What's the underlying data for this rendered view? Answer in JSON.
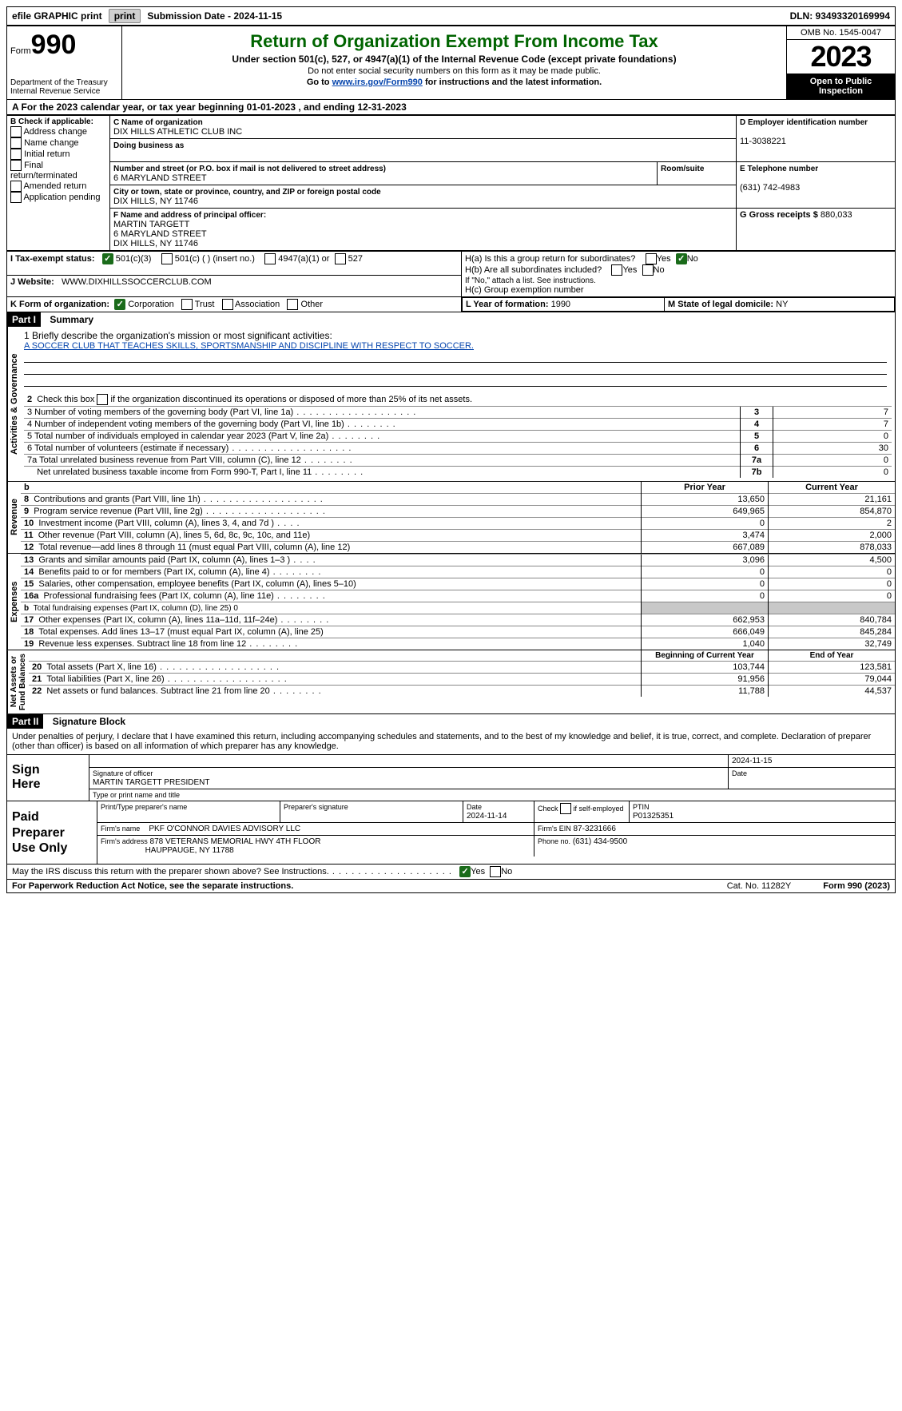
{
  "top": {
    "efile": "efile GRAPHIC print",
    "submission": "Submission Date - 2024-11-15",
    "dln": "DLN: 93493320169994"
  },
  "header": {
    "form_label": "Form",
    "form_no": "990",
    "dept": "Department of the Treasury\nInternal Revenue Service",
    "title": "Return of Organization Exempt From Income Tax",
    "subtitle": "Under section 501(c), 527, or 4947(a)(1) of the Internal Revenue Code (except private foundations)",
    "note1": "Do not enter social security numbers on this form as it may be made public.",
    "note2_prefix": "Go to ",
    "note2_link": "www.irs.gov/Form990",
    "note2_suffix": " for instructions and the latest information.",
    "omb": "OMB No. 1545-0047",
    "year": "2023",
    "open_public": "Open to Public\nInspection"
  },
  "a_line": "A For the 2023 calendar year, or tax year beginning 01-01-2023   , and ending 12-31-2023",
  "box_b": {
    "label": "B Check if applicable:",
    "items": [
      "Address change",
      "Name change",
      "Initial return",
      "Final return/terminated",
      "Amended return",
      "Application pending"
    ]
  },
  "box_c": {
    "name_label": "C Name of organization",
    "name": "DIX HILLS ATHLETIC CLUB INC",
    "dba_label": "Doing business as",
    "dba": "",
    "street_label": "Number and street (or P.O. box if mail is not delivered to street address)",
    "street": "6 MARYLAND STREET",
    "room_label": "Room/suite",
    "room": "",
    "city_label": "City or town, state or province, country, and ZIP or foreign postal code",
    "city": "DIX HILLS, NY  11746"
  },
  "box_d": {
    "label": "D Employer identification number",
    "value": "11-3038221"
  },
  "box_e": {
    "label": "E Telephone number",
    "value": "(631) 742-4983"
  },
  "box_g": {
    "label": "G Gross receipts $",
    "value": "880,033"
  },
  "box_f": {
    "label": "F  Name and address of principal officer:",
    "line1": "MARTIN TARGETT",
    "line2": "6 MARYLAND STREET",
    "line3": "DIX HILLS, NY  11746"
  },
  "box_h": {
    "ha_label": "H(a)  Is this a group return for subordinates?",
    "hb_label": "H(b)  Are all subordinates included?",
    "hb_note": "If \"No,\" attach a list. See instructions.",
    "hc_label": "H(c)  Group exemption number",
    "yes": "Yes",
    "no": "No"
  },
  "tax_exempt": {
    "label": "I  Tax-exempt status:",
    "opt1": "501(c)(3)",
    "opt2": "501(c) (  ) (insert no.)",
    "opt3": "4947(a)(1) or",
    "opt4": "527"
  },
  "website": {
    "label": "J  Website:",
    "value": "WWW.DIXHILLSSOCCERCLUB.COM"
  },
  "box_k": {
    "label": "K Form of organization:",
    "opts": [
      "Corporation",
      "Trust",
      "Association",
      "Other"
    ]
  },
  "box_l": {
    "label": "L Year of formation:",
    "value": "1990"
  },
  "box_m": {
    "label": "M State of legal domicile:",
    "value": "NY"
  },
  "part1": {
    "header": "Part I",
    "title": "Summary",
    "q1_label": "1  Briefly describe the organization's mission or most significant activities:",
    "q1_value": "A SOCCER CLUB THAT TEACHES SKILLS, SPORTSMANSHIP AND DISCIPLINE WITH RESPECT TO SOCCER.",
    "q2": "2   Check this box      if the organization discontinued its operations or disposed of more than 25% of its net assets.",
    "q3": "3   Number of voting members of the governing body (Part VI, line 1a)",
    "q4": "4   Number of independent voting members of the governing body (Part VI, line 1b)",
    "q5": "5   Total number of individuals employed in calendar year 2023 (Part V, line 2a)",
    "q6": "6   Total number of volunteers (estimate if necessary)",
    "q7a": "7a  Total unrelated business revenue from Part VIII, column (C), line 12",
    "q7b": "Net unrelated business taxable income from Form 990-T, Part I, line 11",
    "v3": "7",
    "v4": "7",
    "v5": "0",
    "v6": "30",
    "v7a": "0",
    "v7b": "0",
    "n3": "3",
    "n4": "4",
    "n5": "5",
    "n6": "6",
    "n7a": "7a",
    "n7b": "7b"
  },
  "part1b": {
    "header_prior": "Prior Year",
    "header_curr": "Current Year",
    "rows": [
      {
        "n": "8",
        "label": "Contributions and grants (Part VIII, line 1h)",
        "dots": "dots",
        "py": "13,650",
        "cy": "21,161"
      },
      {
        "n": "9",
        "label": "Program service revenue (Part VIII, line 2g)",
        "dots": "dots",
        "py": "649,965",
        "cy": "854,870"
      },
      {
        "n": "10",
        "label": "Investment income (Part VIII, column (A), lines 3, 4, and 7d )",
        "dots": "dots-vshort",
        "py": "0",
        "cy": "2"
      },
      {
        "n": "11",
        "label": "Other revenue (Part VIII, column (A), lines 5, 6d, 8c, 9c, 10c, and 11e)",
        "dots": "",
        "py": "3,474",
        "cy": "2,000"
      },
      {
        "n": "12",
        "label": "Total revenue—add lines 8 through 11 (must equal Part VIII, column (A), line 12)",
        "dots": "",
        "py": "667,089",
        "cy": "878,033"
      }
    ],
    "section_rev": "Revenue"
  },
  "part1c": {
    "rows": [
      {
        "n": "13",
        "label": "Grants and similar amounts paid (Part IX, column (A), lines 1–3 )",
        "dots": "dots-vshort",
        "py": "3,096",
        "cy": "4,500"
      },
      {
        "n": "14",
        "label": "Benefits paid to or for members (Part IX, column (A), line 4)",
        "dots": "dots-short",
        "py": "0",
        "cy": "0"
      },
      {
        "n": "15",
        "label": "Salaries, other compensation, employee benefits (Part IX, column (A), lines 5–10)",
        "dots": "",
        "py": "0",
        "cy": "0"
      },
      {
        "n": "16a",
        "label": "Professional fundraising fees (Part IX, column (A), line 11e)",
        "dots": "dots-short",
        "py": "0",
        "cy": "0"
      },
      {
        "n": "b",
        "label": "Total fundraising expenses (Part IX, column (D), line 25) 0",
        "dots": "",
        "py": "__gray__",
        "cy": "__gray__",
        "small": true
      },
      {
        "n": "17",
        "label": "Other expenses (Part IX, column (A), lines 11a–11d, 11f–24e)",
        "dots": "dots-short",
        "py": "662,953",
        "cy": "840,784"
      },
      {
        "n": "18",
        "label": "Total expenses. Add lines 13–17 (must equal Part IX, column (A), line 25)",
        "dots": "",
        "py": "666,049",
        "cy": "845,284"
      },
      {
        "n": "19",
        "label": "Revenue less expenses. Subtract line 18 from line 12",
        "dots": "dots-short",
        "py": "1,040",
        "cy": "32,749"
      }
    ],
    "section": "Expenses"
  },
  "part1d": {
    "header_boy": "Beginning of Current Year",
    "header_eoy": "End of Year",
    "rows": [
      {
        "n": "20",
        "label": "Total assets (Part X, line 16)",
        "dots": "dots",
        "py": "103,744",
        "cy": "123,581"
      },
      {
        "n": "21",
        "label": "Total liabilities (Part X, line 26)",
        "dots": "dots",
        "py": "91,956",
        "cy": "79,044"
      },
      {
        "n": "22",
        "label": "Net assets or fund balances. Subtract line 21 from line 20",
        "dots": "dots-short",
        "py": "11,788",
        "cy": "44,537"
      }
    ],
    "section": "Net Assets or\nFund Balances"
  },
  "part2": {
    "header": "Part II",
    "title": "Signature Block"
  },
  "sig": {
    "intro": "Under penalties of perjury, I declare that I have examined this return, including accompanying schedules and statements, and to the best of my knowledge and belief, it is true, correct, and complete. Declaration of preparer (other than officer) is based on all information of which preparer has any knowledge.",
    "sign_here": "Sign\nHere",
    "sig_date": "2024-11-15",
    "sig_officer_label": "Signature of officer",
    "sig_officer": "MARTIN TARGETT  PRESIDENT",
    "sig_date_label": "Date",
    "type_label": "Type or print name and title",
    "paid_prep": "Paid\nPreparer\nUse Only",
    "col_name": "Print/Type preparer's name",
    "col_sig": "Preparer's signature",
    "col_date_label": "Date",
    "col_date": "2024-11-14",
    "self_emp_label": "Check      if self-employed",
    "ptin_label": "PTIN",
    "ptin": "P01325351",
    "firm_name_label": "Firm's name",
    "firm_name": "PKF O'CONNOR DAVIES ADVISORY LLC",
    "firm_ein_label": "Firm's EIN",
    "firm_ein": "87-3231666",
    "firm_addr_label": "Firm's address",
    "firm_addr1": "878 VETERANS MEMORIAL HWY 4TH FLOOR",
    "firm_addr2": "HAUPPAUGE, NY  11788",
    "phone_label": "Phone no.",
    "phone": "(631) 434-9500",
    "discuss": "May the IRS discuss this return with the preparer shown above? See Instructions.",
    "yes": "Yes",
    "no": "No"
  },
  "footer": {
    "paperwork": "For Paperwork Reduction Act Notice, see the separate instructions.",
    "cat": "Cat. No. 11282Y",
    "form": "Form 990 (2023)"
  }
}
